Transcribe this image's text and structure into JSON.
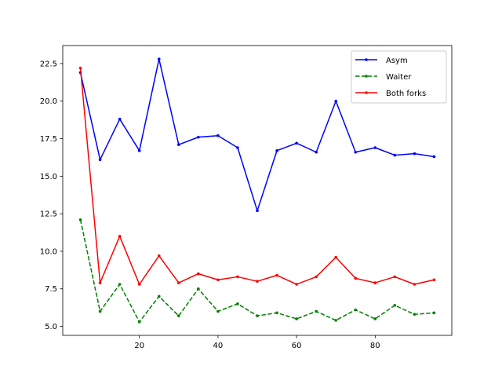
{
  "chart_data": {
    "type": "line",
    "title": "",
    "xlabel": "",
    "ylabel": "",
    "xlim": [
      0.5,
      99.5
    ],
    "ylim": [
      4.4,
      23.7
    ],
    "xticks": [
      20,
      40,
      60,
      80
    ],
    "yticks": [
      5.0,
      7.5,
      10.0,
      12.5,
      15.0,
      17.5,
      20.0,
      22.5
    ],
    "grid": false,
    "legend_position": "top-right",
    "x": [
      5,
      10,
      15,
      20,
      25,
      30,
      35,
      40,
      45,
      50,
      55,
      60,
      65,
      70,
      75,
      80,
      85,
      90,
      95
    ],
    "series": [
      {
        "name": "Asym",
        "color": "#0000ff",
        "style": "solid",
        "values": [
          21.9,
          16.1,
          18.8,
          16.7,
          22.8,
          17.1,
          17.6,
          17.7,
          16.9,
          12.7,
          16.7,
          17.2,
          16.6,
          20.0,
          16.6,
          16.9,
          16.4,
          16.5,
          16.3
        ]
      },
      {
        "name": "Waiter",
        "color": "#008000",
        "style": "dashed",
        "values": [
          12.1,
          6.0,
          7.8,
          5.3,
          7.0,
          5.7,
          7.5,
          6.0,
          6.5,
          5.7,
          5.9,
          5.5,
          6.0,
          5.4,
          6.1,
          5.5,
          6.4,
          5.8,
          5.9
        ]
      },
      {
        "name": "Both forks",
        "color": "#ff0000",
        "style": "solid",
        "values": [
          22.2,
          7.9,
          11.0,
          7.8,
          9.7,
          7.9,
          8.5,
          8.1,
          8.3,
          8.0,
          8.4,
          7.8,
          8.3,
          9.6,
          8.2,
          7.9,
          8.3,
          7.8,
          8.1
        ]
      }
    ]
  }
}
